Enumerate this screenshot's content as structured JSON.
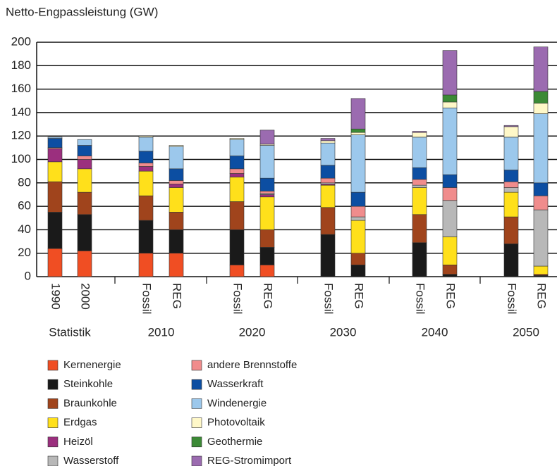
{
  "chart_data": {
    "type": "stacked_bar",
    "ylabel": "Netto-Engpassleistung (GW)",
    "categories": [
      "1990",
      "2000",
      "Fossil",
      "REG",
      "Fossil",
      "REG",
      "Fossil",
      "REG",
      "Fossil",
      "REG",
      "Fossil",
      "REG"
    ],
    "groups": [
      "Statistik",
      "2010",
      "2020",
      "2030",
      "2040",
      "2050"
    ],
    "ylim": [
      0,
      200
    ],
    "yticks": [
      0,
      20,
      40,
      60,
      80,
      100,
      120,
      140,
      160,
      180,
      200
    ],
    "grid": true,
    "series": [
      {
        "name": "Kernenergie",
        "color": "#f04e23",
        "values": [
          24,
          22,
          20,
          20,
          10,
          10,
          0,
          0,
          0,
          0,
          0,
          0
        ]
      },
      {
        "name": "Steinkohle",
        "color": "#1a1a1a",
        "values": [
          31,
          31,
          28,
          20,
          30,
          15,
          36,
          10,
          29,
          2,
          28,
          1
        ]
      },
      {
        "name": "Braunkohle",
        "color": "#a0441c",
        "values": [
          26,
          19,
          21,
          15,
          24,
          15,
          23,
          10,
          24,
          8,
          23,
          1
        ]
      },
      {
        "name": "Erdgas",
        "color": "#ffe01b",
        "values": [
          17,
          20,
          21,
          21,
          21,
          28,
          19,
          28,
          23,
          24,
          21,
          7
        ]
      },
      {
        "name": "Heizöl",
        "color": "#9b2f7e",
        "values": [
          11,
          8,
          4,
          3,
          3,
          2,
          1,
          0,
          0,
          0,
          0,
          0
        ]
      },
      {
        "name": "Wasserstoff",
        "color": "#b8b8b8",
        "values": [
          0,
          0,
          0,
          0,
          0,
          1,
          1,
          3,
          2,
          31,
          4,
          48
        ]
      },
      {
        "name": "andere Brennstoffe",
        "color": "#f08c8c",
        "values": [
          1,
          3,
          3,
          3,
          4,
          2,
          4,
          9,
          5,
          11,
          5,
          12
        ]
      },
      {
        "name": "Wasserkraft",
        "color": "#0c4ea2",
        "values": [
          8,
          9,
          10,
          10,
          11,
          11,
          11,
          12,
          10,
          11,
          10,
          11
        ]
      },
      {
        "name": "Windenergie",
        "color": "#9cc8ec",
        "values": [
          1,
          5,
          12,
          19,
          14,
          28,
          19,
          49,
          26,
          57,
          28,
          59
        ]
      },
      {
        "name": "Photovoltaik",
        "color": "#fff8c8",
        "values": [
          0,
          0,
          1,
          1,
          1,
          1,
          2,
          2,
          4,
          5,
          9,
          9
        ]
      },
      {
        "name": "Geothermie",
        "color": "#3c8a36",
        "values": [
          0,
          0,
          0,
          0,
          0,
          0,
          0,
          3,
          0,
          6,
          0,
          10
        ]
      },
      {
        "name": "REG-Stromimport",
        "color": "#9b6bb0",
        "values": [
          0,
          0,
          0,
          0,
          0,
          12,
          2,
          26,
          1,
          38,
          1,
          38
        ]
      }
    ]
  }
}
